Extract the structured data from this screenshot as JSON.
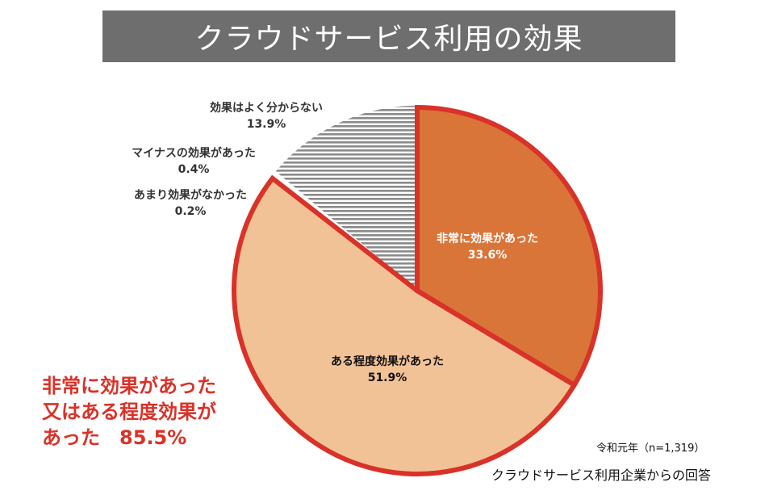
{
  "title": "クラウドサービス利用の効果",
  "callout": {
    "line1": "非常に効果があった",
    "line2": "又はある程度効果が",
    "line3": "あった　85.5%"
  },
  "notes": {
    "survey": "令和元年（n=1,319）",
    "source": "クラウドサービス利用企業からの回答"
  },
  "colors": {
    "very_effective": "#d97539",
    "somewhat_effective": "#f2c297",
    "unknown_stripe": "#8a8a8a",
    "highlight_outline": "#d93228",
    "title_bar": "#6e6e6e"
  },
  "chart_data": {
    "type": "pie",
    "title": "クラウドサービス利用の効果",
    "start_angle_deg": 0,
    "direction": "clockwise",
    "slices": [
      {
        "name": "非常に効果があった",
        "value": 33.6,
        "label": "33.6%",
        "color": "#d97539",
        "pattern": "solid",
        "label_color": "#ffffff",
        "label_position": "inside"
      },
      {
        "name": "ある程度効果があった",
        "value": 51.9,
        "label": "51.9%",
        "color": "#f2c297",
        "pattern": "solid",
        "label_color": "#111111",
        "label_position": "inside"
      },
      {
        "name": "あまり効果がなかった",
        "value": 0.2,
        "label": "0.2%",
        "color": "#444444",
        "pattern": "solid",
        "label_color": "#333333",
        "label_position": "outside"
      },
      {
        "name": "マイナスの効果があった",
        "value": 0.4,
        "label": "0.4%",
        "color": "#ffffff",
        "pattern": "solid",
        "label_color": "#333333",
        "label_position": "outside"
      },
      {
        "name": "効果はよく分からない",
        "value": 13.9,
        "label": "13.9%",
        "color": "#8a8a8a",
        "pattern": "horizontal-stripes",
        "label_color": "#333333",
        "label_position": "outside"
      }
    ],
    "highlighted_slices": [
      "非常に効果があった",
      "ある程度効果があった"
    ]
  }
}
